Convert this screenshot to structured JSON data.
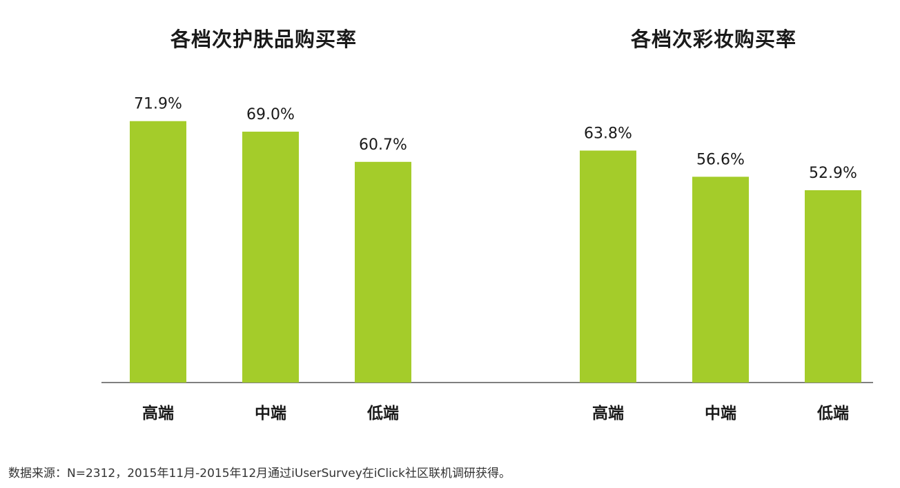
{
  "chart_data": [
    {
      "type": "bar",
      "title": "各档次护肤品购买率",
      "categories": [
        "高端",
        "中端",
        "低端"
      ],
      "values": [
        71.9,
        69.0,
        60.7
      ],
      "labels": [
        "71.9%",
        "69.0%",
        "60.7%"
      ],
      "xlabel": "",
      "ylabel": "",
      "ylim": [
        0,
        100
      ],
      "grid": false
    },
    {
      "type": "bar",
      "title": "各档次彩妆购买率",
      "categories": [
        "高端",
        "中端",
        "低端"
      ],
      "values": [
        63.8,
        56.6,
        52.9
      ],
      "labels": [
        "63.8%",
        "56.6%",
        "52.9%"
      ],
      "xlabel": "",
      "ylabel": "",
      "ylim": [
        0,
        100
      ],
      "grid": false
    }
  ],
  "colors": {
    "bar": "#a4cc2a",
    "axis": "#555555",
    "text": "#1a1a1a"
  },
  "footer": {
    "source": "数据来源：N=2312，2015年11月-2015年12月通过iUserSurvey在iClick社区联机调研获得。"
  }
}
